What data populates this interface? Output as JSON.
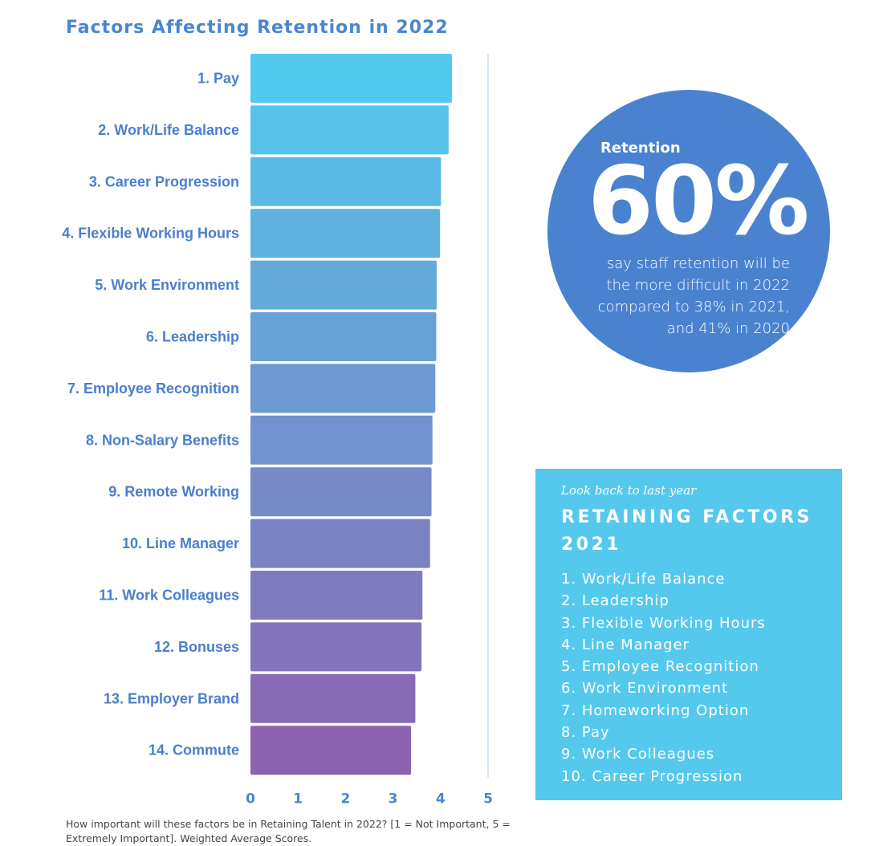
{
  "title": "Factors Affecting Retention in 2022",
  "chart_data": {
    "type": "bar",
    "orientation": "horizontal",
    "categories": [
      "1. Pay",
      "2. Work/Life Balance",
      "3. Career Progression",
      "4. Flexible Working Hours",
      "5. Work Environment",
      "6. Leadership",
      "7. Employee Recognition",
      "8. Non-Salary Benefits",
      "9. Remote Working",
      "10. Line Manager",
      "11. Work Colleagues",
      "12. Bonuses",
      "13. Employer Brand",
      "14. Commute"
    ],
    "values": [
      4.24,
      4.17,
      4.01,
      3.99,
      3.92,
      3.91,
      3.89,
      3.83,
      3.81,
      3.78,
      3.62,
      3.6,
      3.47,
      3.38
    ],
    "xlim": [
      0,
      5
    ],
    "xticks": [
      "0",
      "1",
      "2",
      "3",
      "4",
      "5"
    ],
    "gradient_colors": [
      "#52c9ee",
      "#8c63b0"
    ],
    "reference_line_at": 5,
    "title": "Factors Affecting Retention in 2022",
    "xlabel": "",
    "ylabel": ""
  },
  "stat": {
    "label": "Retention",
    "value": "60%",
    "desc_lines": [
      "say staff retention will be",
      "the more difficult in 2022",
      "compared to 38% in 2021,",
      "and 41% in 2020"
    ],
    "color": "#4a82d0"
  },
  "panel": {
    "kicker": "Look back to last year",
    "heading_line1": "RETAINING FACTORS",
    "heading_line2": "2021",
    "items": [
      "1. Work/Life Balance",
      "2. Leadership",
      "3. Flexible Working Hours",
      "4. Line Manager",
      "5. Employee Recognition",
      "6. Work Environment",
      "7. Homeworking Option",
      "8. Pay",
      "9. Work Colleagues",
      "10. Career Progression"
    ],
    "color": "#55c8ed"
  },
  "footnote": "How important will these factors be in Retaining Talent in 2022? [1 = Not Important, 5 = Extremely Important]. Weighted Average Scores."
}
